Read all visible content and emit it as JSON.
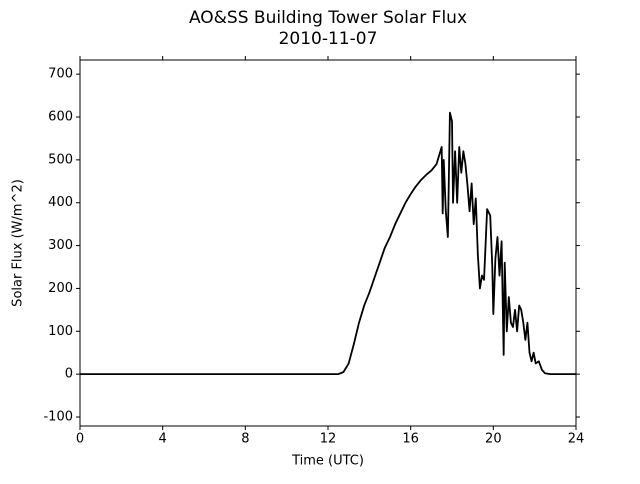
{
  "chart_data": {
    "type": "line",
    "title": "AO&SS Building Tower Solar Flux",
    "subtitle": "2010-11-07",
    "x_label": "Time (UTC)",
    "y_label": "Solar Flux (W/m^2)",
    "color": "#000000",
    "x": [
      0,
      4,
      8,
      12,
      12.5,
      12.75,
      13,
      13.25,
      13.5,
      13.75,
      14,
      14.25,
      14.5,
      14.75,
      15,
      15.25,
      15.5,
      15.75,
      16,
      16.25,
      16.5,
      16.75,
      17,
      17.25,
      17.5,
      17.55,
      17.6,
      17.7,
      17.8,
      17.9,
      18.0,
      18.05,
      18.15,
      18.25,
      18.35,
      18.45,
      18.55,
      18.65,
      18.75,
      18.85,
      18.95,
      19.05,
      19.15,
      19.25,
      19.35,
      19.45,
      19.55,
      19.7,
      19.85,
      19.95,
      20.0,
      20.1,
      20.2,
      20.3,
      20.4,
      20.5,
      20.55,
      20.65,
      20.75,
      20.85,
      20.95,
      21.05,
      21.15,
      21.25,
      21.35,
      21.45,
      21.55,
      21.65,
      21.75,
      21.85,
      21.95,
      22.05,
      22.2,
      22.35,
      22.5,
      22.75,
      24
    ],
    "values": [
      0,
      0,
      0,
      0,
      0,
      5,
      25,
      70,
      120,
      160,
      190,
      225,
      260,
      295,
      320,
      350,
      375,
      400,
      420,
      438,
      453,
      465,
      475,
      490,
      530,
      375,
      500,
      380,
      320,
      610,
      590,
      400,
      520,
      400,
      530,
      470,
      520,
      490,
      440,
      380,
      445,
      350,
      410,
      280,
      200,
      230,
      220,
      385,
      370,
      250,
      140,
      270,
      320,
      230,
      310,
      45,
      260,
      100,
      180,
      120,
      110,
      150,
      100,
      160,
      150,
      120,
      80,
      120,
      50,
      30,
      50,
      25,
      30,
      10,
      2,
      0,
      0
    ],
    "xlim": [
      0,
      24
    ],
    "xticks": [
      0,
      4,
      8,
      12,
      16,
      20,
      24
    ],
    "ylim": [
      -121,
      733
    ],
    "yticks": [
      -100,
      0,
      100,
      200,
      300,
      400,
      500,
      600,
      700
    ]
  }
}
